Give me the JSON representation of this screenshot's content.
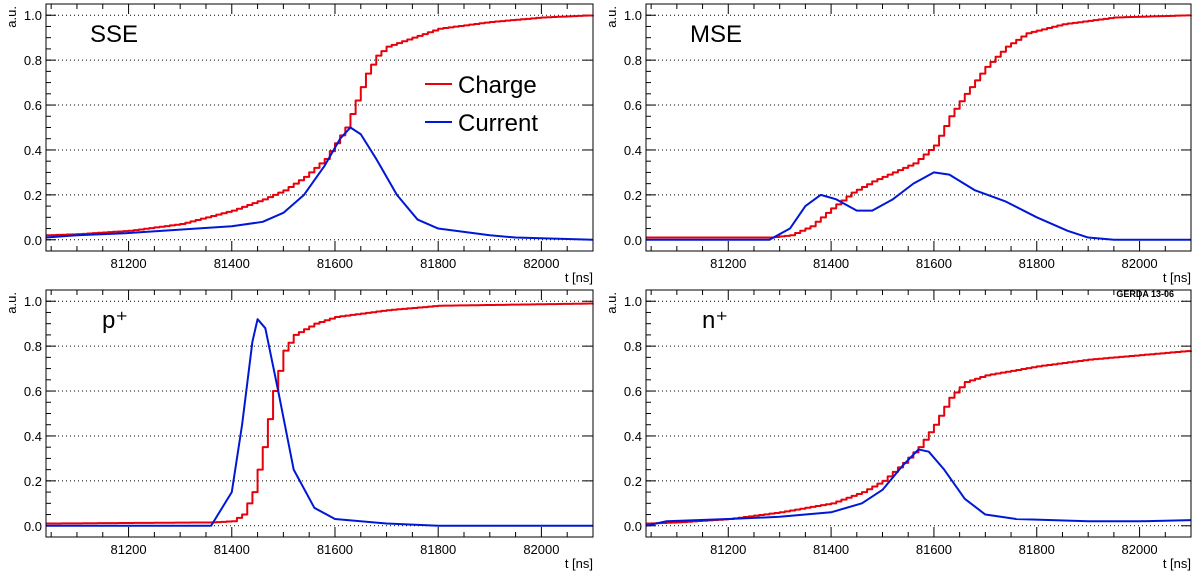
{
  "colors": {
    "charge": "#e8000b",
    "current": "#0018d6",
    "grid": "#000000",
    "frame": "#000000"
  },
  "legend": {
    "charge": "Charge",
    "current": "Current"
  },
  "tag": "GERDA 13-06",
  "chart_data": [
    {
      "type": "line",
      "label": "SSE",
      "xlabel": "t [ns]",
      "ylabel": "a.u.",
      "xlim": [
        81040,
        82100
      ],
      "ylim": [
        -0.05,
        1.05
      ],
      "xticks": [
        81200,
        81400,
        81600,
        81800,
        82000
      ],
      "yticks": [
        0.0,
        0.2,
        0.4,
        0.6,
        0.8,
        1.0
      ],
      "grid": "horizontal dotted",
      "legend_position": "upper-right",
      "series": [
        {
          "name": "Charge",
          "step": true,
          "points": [
            [
              81040,
              0.02
            ],
            [
              81100,
              0.025
            ],
            [
              81200,
              0.04
            ],
            [
              81300,
              0.07
            ],
            [
              81400,
              0.13
            ],
            [
              81460,
              0.18
            ],
            [
              81500,
              0.22
            ],
            [
              81540,
              0.28
            ],
            [
              81580,
              0.36
            ],
            [
              81600,
              0.43
            ],
            [
              81620,
              0.5
            ],
            [
              81640,
              0.62
            ],
            [
              81660,
              0.74
            ],
            [
              81680,
              0.82
            ],
            [
              81700,
              0.86
            ],
            [
              81750,
              0.9
            ],
            [
              81800,
              0.94
            ],
            [
              81900,
              0.97
            ],
            [
              82000,
              0.99
            ],
            [
              82100,
              1.0
            ]
          ]
        },
        {
          "name": "Current",
          "points": [
            [
              81040,
              0.01
            ],
            [
              81100,
              0.02
            ],
            [
              81200,
              0.03
            ],
            [
              81300,
              0.045
            ],
            [
              81400,
              0.06
            ],
            [
              81460,
              0.08
            ],
            [
              81500,
              0.12
            ],
            [
              81540,
              0.2
            ],
            [
              81580,
              0.33
            ],
            [
              81610,
              0.45
            ],
            [
              81630,
              0.5
            ],
            [
              81650,
              0.47
            ],
            [
              81680,
              0.36
            ],
            [
              81720,
              0.2
            ],
            [
              81760,
              0.09
            ],
            [
              81800,
              0.05
            ],
            [
              81900,
              0.02
            ],
            [
              81950,
              0.01
            ],
            [
              82100,
              0.0
            ]
          ]
        }
      ]
    },
    {
      "type": "line",
      "label": "MSE",
      "xlabel": "t [ns]",
      "ylabel": "a.u.",
      "xlim": [
        81040,
        82100
      ],
      "ylim": [
        -0.05,
        1.05
      ],
      "xticks": [
        81200,
        81400,
        81600,
        81800,
        82000
      ],
      "yticks": [
        0.0,
        0.2,
        0.4,
        0.6,
        0.8,
        1.0
      ],
      "grid": "horizontal dotted",
      "series": [
        {
          "name": "Charge",
          "step": true,
          "points": [
            [
              81040,
              0.01
            ],
            [
              81280,
              0.01
            ],
            [
              81320,
              0.02
            ],
            [
              81360,
              0.06
            ],
            [
              81400,
              0.14
            ],
            [
              81440,
              0.21
            ],
            [
              81480,
              0.26
            ],
            [
              81520,
              0.3
            ],
            [
              81560,
              0.34
            ],
            [
              81600,
              0.42
            ],
            [
              81630,
              0.55
            ],
            [
              81660,
              0.65
            ],
            [
              81700,
              0.77
            ],
            [
              81740,
              0.86
            ],
            [
              81780,
              0.92
            ],
            [
              81850,
              0.96
            ],
            [
              81950,
              0.99
            ],
            [
              82100,
              1.0
            ]
          ]
        },
        {
          "name": "Current",
          "points": [
            [
              81040,
              0.0
            ],
            [
              81280,
              0.0
            ],
            [
              81320,
              0.05
            ],
            [
              81350,
              0.15
            ],
            [
              81380,
              0.2
            ],
            [
              81410,
              0.18
            ],
            [
              81450,
              0.13
            ],
            [
              81480,
              0.13
            ],
            [
              81520,
              0.18
            ],
            [
              81560,
              0.25
            ],
            [
              81600,
              0.3
            ],
            [
              81630,
              0.29
            ],
            [
              81680,
              0.22
            ],
            [
              81740,
              0.17
            ],
            [
              81800,
              0.1
            ],
            [
              81860,
              0.04
            ],
            [
              81900,
              0.01
            ],
            [
              81950,
              0.0
            ],
            [
              82100,
              0.0
            ]
          ]
        }
      ]
    },
    {
      "type": "line",
      "label": "p⁺",
      "xlabel": "t [ns]",
      "ylabel": "a.u.",
      "xlim": [
        81040,
        82100
      ],
      "ylim": [
        -0.05,
        1.05
      ],
      "xticks": [
        81200,
        81400,
        81600,
        81800,
        82000
      ],
      "yticks": [
        0.0,
        0.2,
        0.4,
        0.6,
        0.8,
        1.0
      ],
      "grid": "horizontal dotted",
      "series": [
        {
          "name": "Charge",
          "step": true,
          "points": [
            [
              81040,
              0.01
            ],
            [
              81360,
              0.015
            ],
            [
              81400,
              0.02
            ],
            [
              81420,
              0.05
            ],
            [
              81440,
              0.15
            ],
            [
              81460,
              0.35
            ],
            [
              81480,
              0.6
            ],
            [
              81500,
              0.78
            ],
            [
              81520,
              0.85
            ],
            [
              81560,
              0.9
            ],
            [
              81600,
              0.93
            ],
            [
              81700,
              0.96
            ],
            [
              81800,
              0.98
            ],
            [
              82100,
              0.99
            ]
          ]
        },
        {
          "name": "Current",
          "points": [
            [
              81040,
              0.0
            ],
            [
              81360,
              0.0
            ],
            [
              81400,
              0.15
            ],
            [
              81420,
              0.45
            ],
            [
              81440,
              0.82
            ],
            [
              81450,
              0.92
            ],
            [
              81465,
              0.88
            ],
            [
              81490,
              0.6
            ],
            [
              81520,
              0.25
            ],
            [
              81560,
              0.08
            ],
            [
              81600,
              0.03
            ],
            [
              81700,
              0.01
            ],
            [
              81800,
              0.0
            ],
            [
              82100,
              0.0
            ]
          ]
        }
      ]
    },
    {
      "type": "line",
      "label": "n⁺",
      "xlabel": "t [ns]",
      "ylabel": "a.u.",
      "xlim": [
        81040,
        82100
      ],
      "ylim": [
        -0.05,
        1.05
      ],
      "xticks": [
        81200,
        81400,
        81600,
        81800,
        82000
      ],
      "yticks": [
        0.0,
        0.2,
        0.4,
        0.6,
        0.8,
        1.0
      ],
      "grid": "horizontal dotted",
      "series": [
        {
          "name": "Charge",
          "step": true,
          "points": [
            [
              81040,
              0.01
            ],
            [
              81100,
              0.015
            ],
            [
              81200,
              0.03
            ],
            [
              81300,
              0.06
            ],
            [
              81400,
              0.1
            ],
            [
              81460,
              0.15
            ],
            [
              81500,
              0.2
            ],
            [
              81540,
              0.28
            ],
            [
              81570,
              0.35
            ],
            [
              81600,
              0.45
            ],
            [
              81630,
              0.57
            ],
            [
              81660,
              0.64
            ],
            [
              81700,
              0.67
            ],
            [
              81800,
              0.71
            ],
            [
              81900,
              0.74
            ],
            [
              82000,
              0.76
            ],
            [
              82100,
              0.78
            ]
          ]
        },
        {
          "name": "Current",
          "points": [
            [
              81040,
              0.0
            ],
            [
              81080,
              0.02
            ],
            [
              81200,
              0.03
            ],
            [
              81300,
              0.04
            ],
            [
              81400,
              0.06
            ],
            [
              81460,
              0.1
            ],
            [
              81500,
              0.16
            ],
            [
              81540,
              0.27
            ],
            [
              81570,
              0.34
            ],
            [
              81590,
              0.33
            ],
            [
              81620,
              0.25
            ],
            [
              81660,
              0.12
            ],
            [
              81700,
              0.05
            ],
            [
              81760,
              0.03
            ],
            [
              81900,
              0.02
            ],
            [
              82000,
              0.02
            ],
            [
              82100,
              0.025
            ]
          ]
        }
      ]
    }
  ]
}
